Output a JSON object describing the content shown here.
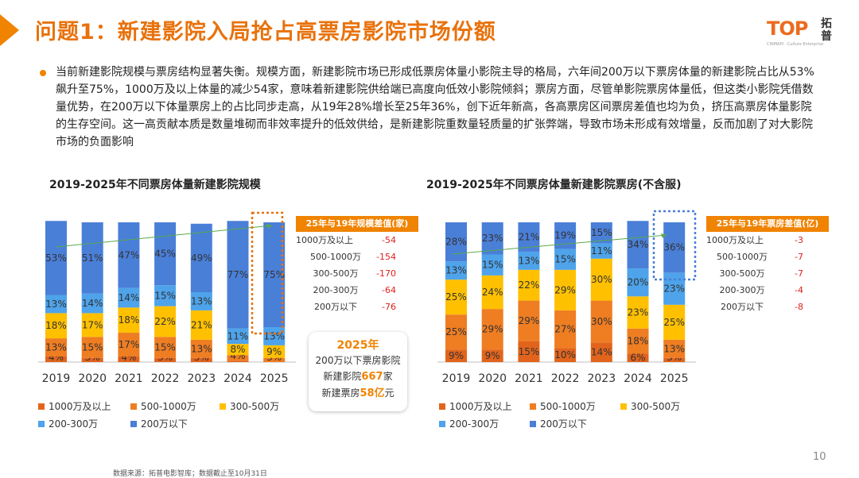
{
  "page": {
    "title": "问题1：新建影院入局抢占高票房影院市场份额",
    "logo_text": "TOP",
    "logo_sub": "CINMAPI · Culture Enterprise",
    "logo_cn": "拓普",
    "page_number": "10",
    "source": "数据来源：拓普电影智库；数据截止至10月31日"
  },
  "summary": "当前新建影院规模与票房结构显著失衡。规模方面，新建影院市场已形成低票房体量小影院主导的格局，六年间200万以下票房体量的新建影院占比从53%飙升至75%，1000万及以上体量的减少54家，意味着新建影院供给端已高度向低效小影院倾斜；票房方面，尽管单影院票房体量低，但这类小影院凭借数量优势，在200万以下体量票房上的占比同步走高，从19年28%增长至25年36%，创下近年新高，各高票房区间票房差值也均为负，挤压高票房体量影院的生存空间。这一高贡献本质是数量堆砌而非效率提升的低效供给，是新建影院重数量轻质量的扩张弊端，导致市场未形成有效增量，反而加剧了对大影院市场的负面影响",
  "colors": {
    "accent": "#f08300",
    "seg_1000plus": "#e2641c",
    "seg_500_1000": "#ef7d22",
    "seg_300_500": "#ffc000",
    "seg_200_300": "#4ea3ea",
    "seg_under200": "#4a7fd8",
    "negative": "#e0211c"
  },
  "legend": [
    "1000万及以上",
    "500-1000万",
    "300-500万",
    "200-300万",
    "200万以下"
  ],
  "chart_data": [
    {
      "type": "bar",
      "stacked": true,
      "title": "2019-2025年不同票房体量新建影院规模",
      "categories": [
        "2019",
        "2020",
        "2021",
        "2022",
        "2023",
        "2024",
        "2025"
      ],
      "series": [
        {
          "name": "1000万及以上",
          "values": [
            4,
            3,
            4,
            3,
            3,
            1,
            0
          ]
        },
        {
          "name": "500-1000万",
          "values": [
            13,
            15,
            17,
            15,
            13,
            4,
            3
          ]
        },
        {
          "name": "300-500万",
          "values": [
            18,
            17,
            18,
            22,
            21,
            8,
            9
          ]
        },
        {
          "name": "200-300万",
          "values": [
            13,
            14,
            14,
            15,
            13,
            11,
            13
          ]
        },
        {
          "name": "200万以下",
          "values": [
            53,
            51,
            47,
            45,
            49,
            77,
            75
          ]
        }
      ],
      "value_suffix": "%",
      "ylim": [
        0,
        100
      ],
      "diff_table": {
        "title": "25年与19年规模差值(家)",
        "rows": [
          {
            "label": "1000万及以上",
            "value": "-54"
          },
          {
            "label": "500-1000万",
            "value": "-154"
          },
          {
            "label": "300-500万",
            "value": "-170"
          },
          {
            "label": "200-300万",
            "value": "-64"
          },
          {
            "label": "200万以下",
            "value": "-76"
          }
        ]
      }
    },
    {
      "type": "bar",
      "stacked": true,
      "title": "2019-2025年不同票房体量新建影院票房(不含服)",
      "categories": [
        "2019",
        "2020",
        "2021",
        "2022",
        "2023",
        "2024",
        "2025"
      ],
      "series": [
        {
          "name": "1000万及以上",
          "values": [
            9,
            9,
            15,
            10,
            14,
            6,
            3
          ]
        },
        {
          "name": "500-1000万",
          "values": [
            25,
            29,
            29,
            27,
            30,
            18,
            13
          ]
        },
        {
          "name": "300-500万",
          "values": [
            25,
            24,
            22,
            29,
            30,
            23,
            25
          ]
        },
        {
          "name": "200-300万",
          "values": [
            13,
            15,
            13,
            15,
            11,
            20,
            23
          ]
        },
        {
          "name": "200万以下",
          "values": [
            28,
            23,
            21,
            19,
            15,
            34,
            36
          ]
        }
      ],
      "value_suffix": "%",
      "ylim": [
        0,
        100
      ],
      "diff_table": {
        "title": "25年与19年票房差值(亿)",
        "rows": [
          {
            "label": "1000万及以上",
            "value": "-3"
          },
          {
            "label": "500-1000万",
            "value": "-7"
          },
          {
            "label": "300-500万",
            "value": "-7"
          },
          {
            "label": "200-300万",
            "value": "-4"
          },
          {
            "label": "200万以下",
            "value": "-8"
          }
        ]
      }
    }
  ],
  "callout": {
    "title": "2025年",
    "line1": "200万以下票房影院",
    "line2_prefix": "新建影院",
    "line2_num": "667",
    "line2_suffix": "家",
    "line3_prefix": "新建票房",
    "line3_num": "58亿",
    "line3_suffix": "元"
  }
}
